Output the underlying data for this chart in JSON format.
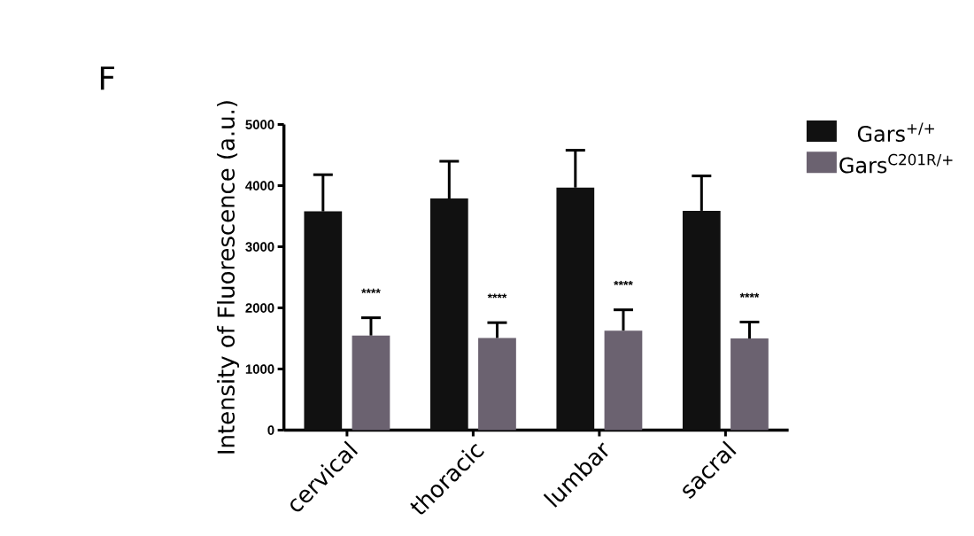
{
  "chart_data": {
    "type": "bar",
    "ylabel": "Intensity of Fluorescence (a.u.)",
    "categories": [
      "cervical",
      "thoracic",
      "lumbar",
      "sacral"
    ],
    "series": [
      {
        "name": "Gars$^{+/+}$",
        "color": "#111111",
        "values": [
          3580,
          3790,
          3970,
          3590
        ],
        "errors": [
          600,
          610,
          610,
          570
        ]
      },
      {
        "name": "Gars$^{C201R/+}$",
        "color": "#6b6270",
        "values": [
          1550,
          1510,
          1630,
          1500
        ],
        "errors": [
          290,
          250,
          340,
          270
        ]
      }
    ],
    "ylim": [
      0,
      5000
    ],
    "yticks": [
      0,
      1000,
      2000,
      3000,
      4000,
      5000
    ],
    "legend": "top right",
    "annotations": [
      "F",
      "****",
      "****",
      "****",
      "****"
    ]
  }
}
